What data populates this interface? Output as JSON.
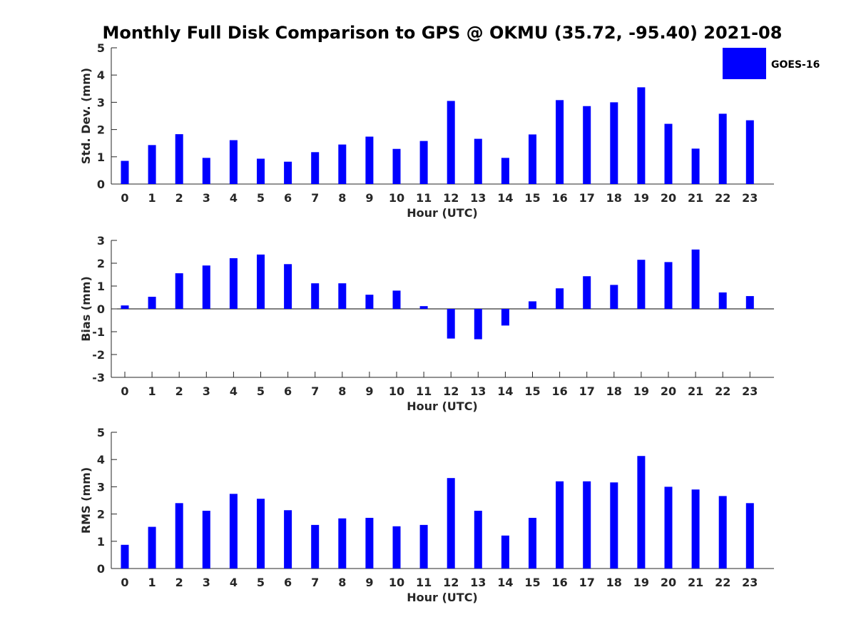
{
  "title": "Monthly Full Disk Comparison to GPS @ OKMU (35.72, -95.40) 2021-08",
  "legend": {
    "label": "GOES-16",
    "color": "#0000ff",
    "placement": "top-right"
  },
  "chart_data": [
    {
      "type": "bar",
      "ylabel": "Std. Dev. (mm)",
      "xlabel": "Hour (UTC)",
      "ylim": [
        0,
        5
      ],
      "yticks": [
        "0",
        "1",
        "2",
        "3",
        "4",
        "5"
      ],
      "categories": [
        "0",
        "1",
        "2",
        "3",
        "4",
        "5",
        "6",
        "7",
        "8",
        "9",
        "10",
        "11",
        "12",
        "13",
        "14",
        "15",
        "16",
        "17",
        "18",
        "19",
        "20",
        "21",
        "22",
        "23"
      ],
      "series": [
        {
          "name": "GOES-16",
          "color": "#0000ff",
          "values": [
            0.85,
            1.43,
            1.83,
            0.96,
            1.61,
            0.93,
            0.82,
            1.17,
            1.45,
            1.74,
            1.29,
            1.58,
            3.05,
            1.66,
            0.96,
            1.82,
            3.08,
            2.86,
            3.0,
            3.55,
            2.21,
            1.3,
            2.58,
            2.34
          ]
        }
      ],
      "grid": false
    },
    {
      "type": "bar",
      "ylabel": "Bias (mm)",
      "xlabel": "Hour (UTC)",
      "ylim": [
        -3,
        3
      ],
      "yticks": [
        "-3",
        "-2",
        "-1",
        "0",
        "1",
        "2",
        "3"
      ],
      "categories": [
        "0",
        "1",
        "2",
        "3",
        "4",
        "5",
        "6",
        "7",
        "8",
        "9",
        "10",
        "11",
        "12",
        "13",
        "14",
        "15",
        "16",
        "17",
        "18",
        "19",
        "20",
        "21",
        "22",
        "23"
      ],
      "series": [
        {
          "name": "GOES-16",
          "color": "#0000ff",
          "values": [
            0.15,
            0.53,
            1.56,
            1.9,
            2.22,
            2.38,
            1.96,
            1.12,
            1.12,
            0.62,
            0.8,
            0.12,
            -1.3,
            -1.33,
            -0.73,
            0.33,
            0.9,
            1.43,
            1.05,
            2.15,
            2.05,
            2.6,
            0.72,
            0.56
          ]
        }
      ],
      "grid": false
    },
    {
      "type": "bar",
      "ylabel": "RMS (mm)",
      "xlabel": "Hour (UTC)",
      "ylim": [
        0,
        5
      ],
      "yticks": [
        "0",
        "1",
        "2",
        "3",
        "4",
        "5"
      ],
      "categories": [
        "0",
        "1",
        "2",
        "3",
        "4",
        "5",
        "6",
        "7",
        "8",
        "9",
        "10",
        "11",
        "12",
        "13",
        "14",
        "15",
        "16",
        "17",
        "18",
        "19",
        "20",
        "21",
        "22",
        "23"
      ],
      "series": [
        {
          "name": "GOES-16",
          "color": "#0000ff",
          "values": [
            0.87,
            1.53,
            2.4,
            2.12,
            2.74,
            2.56,
            2.14,
            1.6,
            1.84,
            1.86,
            1.55,
            1.6,
            3.32,
            2.12,
            1.21,
            1.86,
            3.2,
            3.2,
            3.16,
            4.13,
            3.0,
            2.9,
            2.66,
            2.4
          ]
        }
      ],
      "grid": false
    }
  ]
}
